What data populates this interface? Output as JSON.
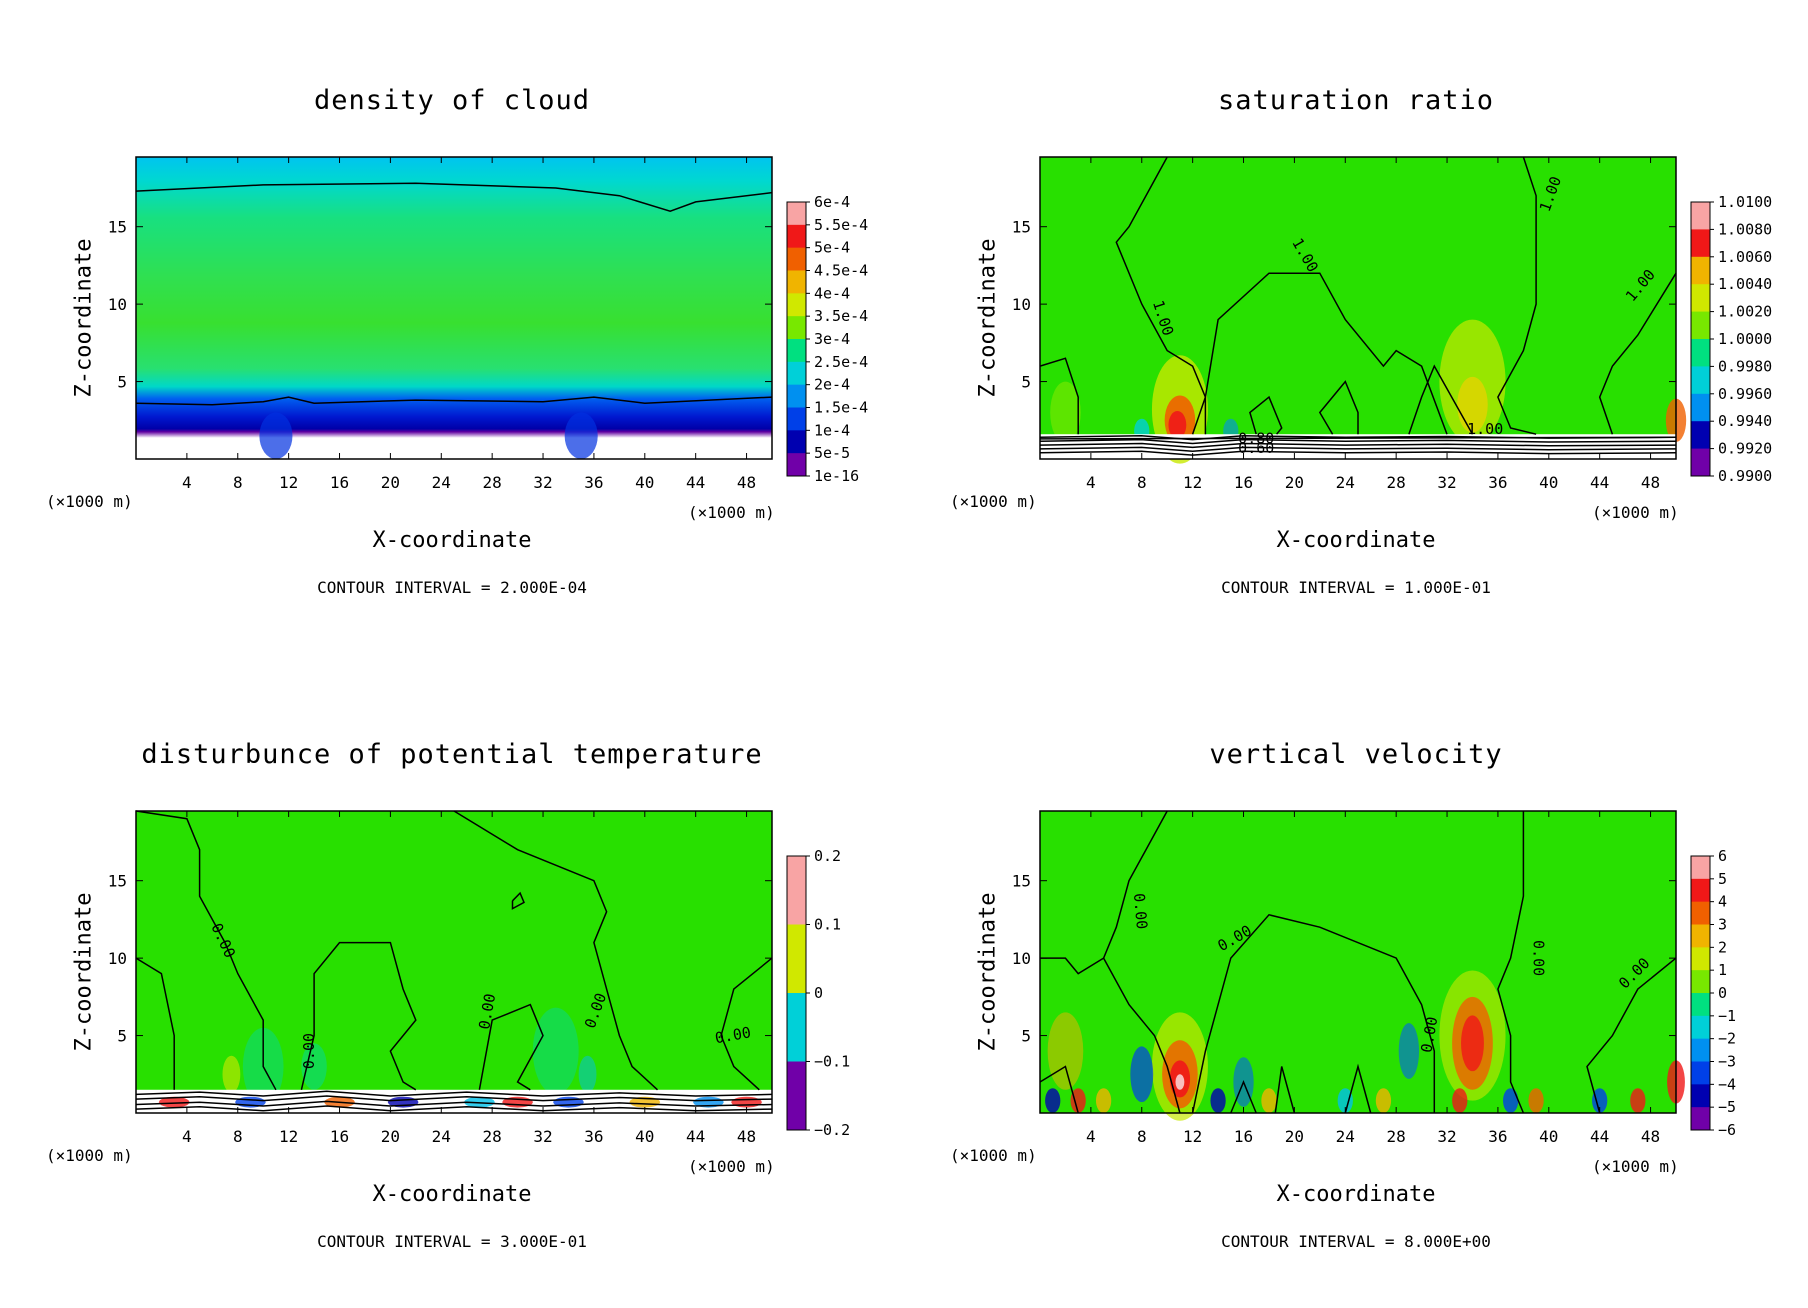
{
  "chart_data": [
    {
      "type": "heatmap",
      "title": "density of cloud",
      "xlabel": "X-coordinate",
      "ylabel": "Z-coordinate",
      "x_unit": "(×1000 m)",
      "xlim": [
        0,
        50
      ],
      "ylim": [
        0,
        19.5
      ],
      "x_ticks": [
        4,
        8,
        12,
        16,
        20,
        24,
        28,
        32,
        36,
        40,
        44,
        48
      ],
      "y_ticks": [
        5,
        10,
        15
      ],
      "colorbar_labels": [
        "6e-4",
        "5.5e-4",
        "5e-4",
        "4.5e-4",
        "4e-4",
        "3.5e-4",
        "3e-4",
        "2.5e-4",
        "2e-4",
        "1.5e-4",
        "1e-4",
        "5e-5",
        "1e-16"
      ],
      "contour_interval": "CONTOUR INTERVAL = 2.000E-04",
      "contour_labels": []
    },
    {
      "type": "heatmap",
      "title": "saturation ratio",
      "xlabel": "X-coordinate",
      "ylabel": "Z-coordinate",
      "x_unit": "(×1000 m)",
      "xlim": [
        0,
        50
      ],
      "ylim": [
        0,
        19.5
      ],
      "x_ticks": [
        4,
        8,
        12,
        16,
        20,
        24,
        28,
        32,
        36,
        40,
        44,
        48
      ],
      "y_ticks": [
        5,
        10,
        15
      ],
      "colorbar_labels": [
        "1.0100",
        "1.0080",
        "1.0060",
        "1.0040",
        "1.0020",
        "1.0000",
        "0.9980",
        "0.9960",
        "0.9940",
        "0.9920",
        "0.9900"
      ],
      "contour_interval": "CONTOUR INTERVAL = 1.000E-01",
      "contour_labels": [
        "1.00",
        "1.00",
        "1.00",
        "1.00",
        "1.00",
        "0.80",
        "0.60"
      ]
    },
    {
      "type": "heatmap",
      "title": "disturbunce of potential temperature",
      "xlabel": "X-coordinate",
      "ylabel": "Z-coordinate",
      "x_unit": "(×1000 m)",
      "xlim": [
        0,
        50
      ],
      "ylim": [
        0,
        19.5
      ],
      "x_ticks": [
        4,
        8,
        12,
        16,
        20,
        24,
        28,
        32,
        36,
        40,
        44,
        48
      ],
      "y_ticks": [
        5,
        10,
        15
      ],
      "colorbar_labels": [
        "0.2",
        "0.1",
        "0",
        "−0.1",
        "−0.2"
      ],
      "contour_interval": "CONTOUR INTERVAL = 3.000E-01",
      "contour_labels": [
        "0.00",
        "0.00",
        "0.00",
        "0.00",
        "0.00"
      ]
    },
    {
      "type": "heatmap",
      "title": "vertical velocity",
      "xlabel": "X-coordinate",
      "ylabel": "Z-coordinate",
      "x_unit": "(×1000 m)",
      "xlim": [
        0,
        50
      ],
      "ylim": [
        0,
        19.5
      ],
      "x_ticks": [
        4,
        8,
        12,
        16,
        20,
        24,
        28,
        32,
        36,
        40,
        44,
        48
      ],
      "y_ticks": [
        5,
        10,
        15
      ],
      "colorbar_labels": [
        "6",
        "5",
        "4",
        "3",
        "2",
        "1",
        "0",
        "−1",
        "−2",
        "−3",
        "−4",
        "−5",
        "−6"
      ],
      "contour_interval": "CONTOUR INTERVAL = 8.000E+00",
      "contour_labels": [
        "0.00",
        "0.00",
        "0.00",
        "0.00",
        "0.00"
      ]
    }
  ],
  "palette": [
    "#f8a4a4",
    "#f01818",
    "#f06000",
    "#f0b400",
    "#d0e800",
    "#78e800",
    "#20e000",
    "#00e080",
    "#00d0d8",
    "#0090f0",
    "#0040e8",
    "#0000b0",
    "#7000a8"
  ],
  "field_green": "#28e000"
}
